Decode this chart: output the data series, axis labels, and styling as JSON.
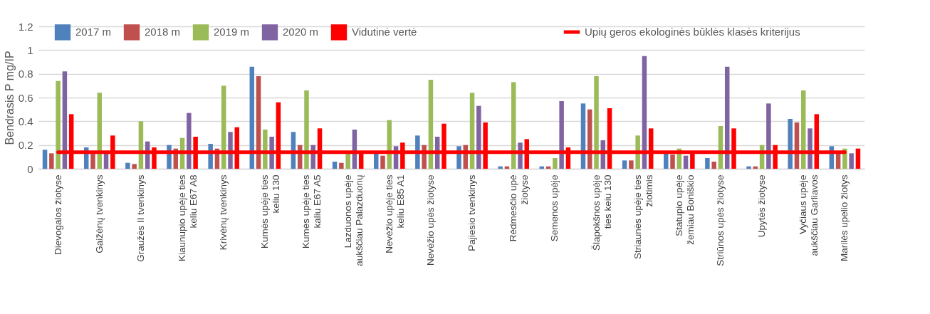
{
  "chart_data": {
    "type": "bar",
    "ylabel": "Bendrasis P mg/IP",
    "ylim": [
      0,
      1.2
    ],
    "yticks": [
      0,
      0.2,
      0.4,
      0.6,
      0.8,
      1,
      1.2
    ],
    "grid": "y",
    "legend": "top",
    "categories": [
      "Dievogalos žiotyse",
      "Gaižėnų tvenkinys",
      "Graužės II tvenkinys",
      "Kiaunupio upėje ties\nkeliu E67 A8",
      "Krivėnų tvenkinys",
      "Kumės upėje ties\nkeliu 130",
      "Kumės upėje ties\nkaliu E67 A5",
      "Lazduonos upėje\naukščiau Palazduonų",
      "Nevėžio upėje ties\nkeliu E85 A1",
      "Nevėžio upės žiotyse",
      "Pajiesio tvenkinys",
      "Rėdmesčio upė\nžiotyse",
      "Semenos upėje",
      "Šlapokšnos upėje\nties keiu 130",
      "Striaunės upėje ties\nžiotimis",
      "Statupio upėje\nžemiau Boniškio",
      "Striūnos upės žiotyse",
      "Upytės žiotyse",
      "Vyčiaus upėje\naukščiau Garliavos",
      "Marilės upelio žiotys"
    ],
    "series": [
      {
        "name": "2017 m",
        "type": "bar",
        "color": "#4f81bd",
        "values": [
          0.16,
          0.18,
          0.05,
          0.2,
          0.21,
          0.86,
          0.31,
          0.06,
          0.14,
          0.28,
          0.19,
          0.02,
          0.02,
          0.55,
          0.07,
          0.14,
          0.09,
          0.02,
          0.42,
          0.19
        ]
      },
      {
        "name": "2018 m",
        "type": "bar",
        "color": "#c0504d",
        "values": [
          0.13,
          0.14,
          0.04,
          0.17,
          0.17,
          0.78,
          0.2,
          0.05,
          0.11,
          0.2,
          0.2,
          0.02,
          0.02,
          0.5,
          0.07,
          0.12,
          0.06,
          0.02,
          0.39,
          0.14
        ]
      },
      {
        "name": "2019 m",
        "type": "bar",
        "color": "#9bbb59",
        "values": [
          0.74,
          0.64,
          0.4,
          0.26,
          0.7,
          0.33,
          0.66,
          0.14,
          0.41,
          0.75,
          0.64,
          0.73,
          0.09,
          0.78,
          0.28,
          0.17,
          0.36,
          0.2,
          0.66,
          0.17
        ]
      },
      {
        "name": "2020 m",
        "type": "bar",
        "color": "#8064a2",
        "values": [
          0.82,
          0.14,
          0.23,
          0.47,
          0.31,
          0.27,
          0.2,
          0.33,
          0.19,
          0.27,
          0.53,
          0.22,
          0.57,
          0.24,
          0.95,
          0.11,
          0.86,
          0.55,
          0.34,
          0.13
        ]
      },
      {
        "name": "Vidutinė vertė",
        "type": "bar",
        "color": "#ff0000",
        "values": [
          0.46,
          0.28,
          0.18,
          0.27,
          0.35,
          0.56,
          0.34,
          0.14,
          0.22,
          0.38,
          0.39,
          0.25,
          0.18,
          0.51,
          0.34,
          0.14,
          0.34,
          0.2,
          0.46,
          0.17
        ]
      },
      {
        "name": "Upių geros ekologinės būklės klasės kriterijus",
        "type": "line",
        "color": "#ff0000",
        "values": [
          0.14,
          0.14,
          0.14,
          0.14,
          0.14,
          0.14,
          0.14,
          0.14,
          0.14,
          0.14,
          0.14,
          0.14,
          0.14,
          0.14,
          0.14,
          0.14,
          0.14,
          0.14,
          0.14,
          0.14
        ]
      }
    ]
  }
}
